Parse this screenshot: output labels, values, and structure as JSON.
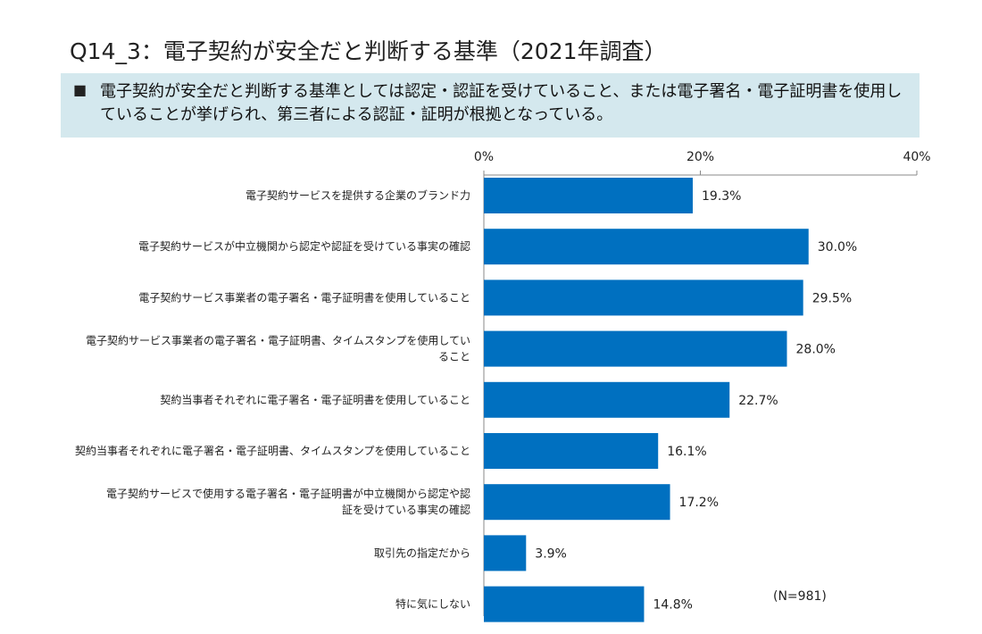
{
  "header": {
    "title": "Q14_3：電子契約が安全だと判断する基準（2021年調査）",
    "summary_bullet": "■",
    "summary": "電子契約が安全だと判断する基準としては認定・認証を受けていること、または電子署名・電子証明書を使用していることが挙げられ、第三者による認証・証明が根拠となっている。"
  },
  "chart_data": {
    "type": "bar",
    "orientation": "horizontal",
    "categories": [
      [
        "電子契約サービスを提供する企業のブランド力"
      ],
      [
        "電子契約サービスが中立機関から認定や認証を受けている事実の確認"
      ],
      [
        "電子契約サービス事業者の電子署名・電子証明書を使用していること"
      ],
      [
        "電子契約サービス事業者の電子署名・電子証明書、タイムスタンプを使用してい",
        "ること"
      ],
      [
        "契約当事者それぞれに電子署名・電子証明書を使用していること"
      ],
      [
        "契約当事者それぞれに電子署名・電子証明書、タイムスタンプを使用していること"
      ],
      [
        "電子契約サービスで使用する電子署名・電子証明書が中立機関から認定や認",
        "証を受けている事実の確認"
      ],
      [
        "取引先の指定だから"
      ],
      [
        "特に気にしない"
      ]
    ],
    "values": [
      19.3,
      30.0,
      29.5,
      28.0,
      22.7,
      16.1,
      17.2,
      3.9,
      14.8
    ],
    "value_labels": [
      "19.3%",
      "30.0%",
      "29.5%",
      "28.0%",
      "22.7%",
      "16.1%",
      "17.2%",
      "3.9%",
      "14.8%"
    ],
    "xlim": [
      0,
      40
    ],
    "ticks": [
      0,
      20,
      40
    ],
    "tick_labels": [
      "0%",
      "20%",
      "40%"
    ],
    "bar_color": "#0070c0",
    "grid": false,
    "note": "(N=981)"
  }
}
